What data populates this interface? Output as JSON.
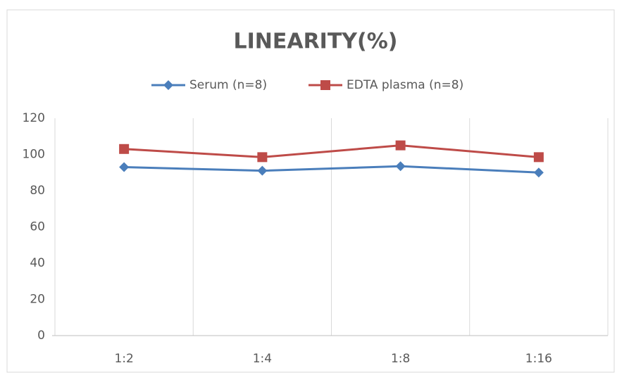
{
  "chart_data": {
    "type": "line",
    "title": "LINEARITY(%)",
    "categories": [
      "1:2",
      "1:4",
      "1:8",
      "1:16"
    ],
    "series": [
      {
        "name": "Serum (n=8)",
        "color": "#4a7ebb",
        "marker": "diamond",
        "values": [
          93,
          91,
          93.5,
          90
        ]
      },
      {
        "name": "EDTA plasma (n=8)",
        "color": "#be4b48",
        "marker": "square",
        "values": [
          103,
          98.5,
          105,
          98.5
        ]
      }
    ],
    "ylim": [
      0,
      120
    ],
    "yticks": [
      0,
      20,
      40,
      60,
      80,
      100,
      120
    ],
    "grid": true,
    "legend": "top"
  }
}
